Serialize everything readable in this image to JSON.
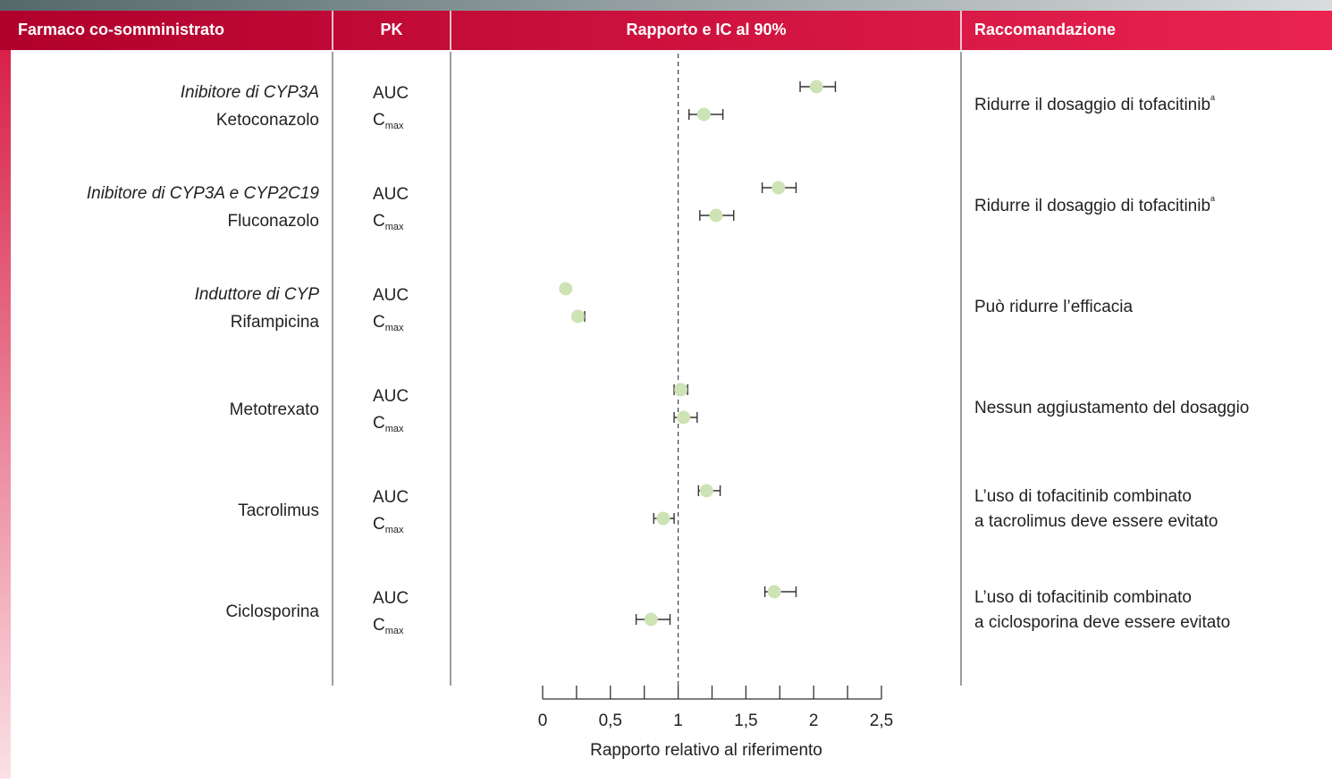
{
  "chart_data": {
    "type": "forest",
    "columns": [
      "Farmaco co-somministrato",
      "PK",
      "Rapporto e IC al 90%",
      "Raccomandazione"
    ],
    "rows": [
      {
        "class": "Inibitore di CYP3A",
        "drug": "Ketoconazolo",
        "recommendation": [
          "Ridurre il dosaggio di tofacitinib"
        ],
        "footnote": "a"
      },
      {
        "class": "Inibitore di CYP3A e CYP2C19",
        "drug": "Fluconazolo",
        "recommendation": [
          "Ridurre il dosaggio di tofacitinib"
        ],
        "footnote": "a"
      },
      {
        "class": "Induttore di CYP",
        "drug": "Rifampicina",
        "recommendation": [
          "Può ridurre l’efficacia"
        ]
      },
      {
        "drug": "Metotrexato",
        "recommendation": [
          "Nessun aggiustamento del dosaggio"
        ]
      },
      {
        "drug": "Tacrolimus",
        "recommendation": [
          "L’uso di tofacitinib combinato",
          "a tacrolimus deve essere evitato"
        ]
      },
      {
        "drug": "Ciclosporina",
        "recommendation": [
          "L’uso di tofacitinib combinato",
          "a ciclosporina deve essere evitato"
        ]
      }
    ],
    "series": [
      {
        "name": "AUC",
        "color": "#cde3b5",
        "values": [
          2.02,
          1.74,
          0.17,
          1.02,
          1.21,
          1.71
        ],
        "low": [
          1.9,
          1.62,
          null,
          0.97,
          1.15,
          1.64
        ],
        "high": [
          2.16,
          1.87,
          null,
          1.07,
          1.31,
          1.87
        ]
      },
      {
        "name": "C",
        "subscript": "max",
        "color": "#cde3b5",
        "values": [
          1.19,
          1.28,
          0.26,
          1.04,
          0.89,
          0.8
        ],
        "low": [
          1.08,
          1.16,
          0.24,
          0.97,
          0.82,
          0.69
        ],
        "high": [
          1.33,
          1.41,
          0.31,
          1.14,
          0.97,
          0.94
        ]
      }
    ],
    "reference_line": 1,
    "xlim": [
      0,
      2.5
    ],
    "xticks": [
      0,
      {
        "value": 0.5,
        "label": "0,5"
      },
      1,
      {
        "value": 1.5,
        "label": "1,5"
      },
      2,
      {
        "value": 2.5,
        "label": "2,5"
      }
    ],
    "xminorticks": [
      0.25,
      0.75,
      1.25,
      1.75,
      2.25
    ],
    "xlabel": "Rapporto relativo al riferimento"
  }
}
